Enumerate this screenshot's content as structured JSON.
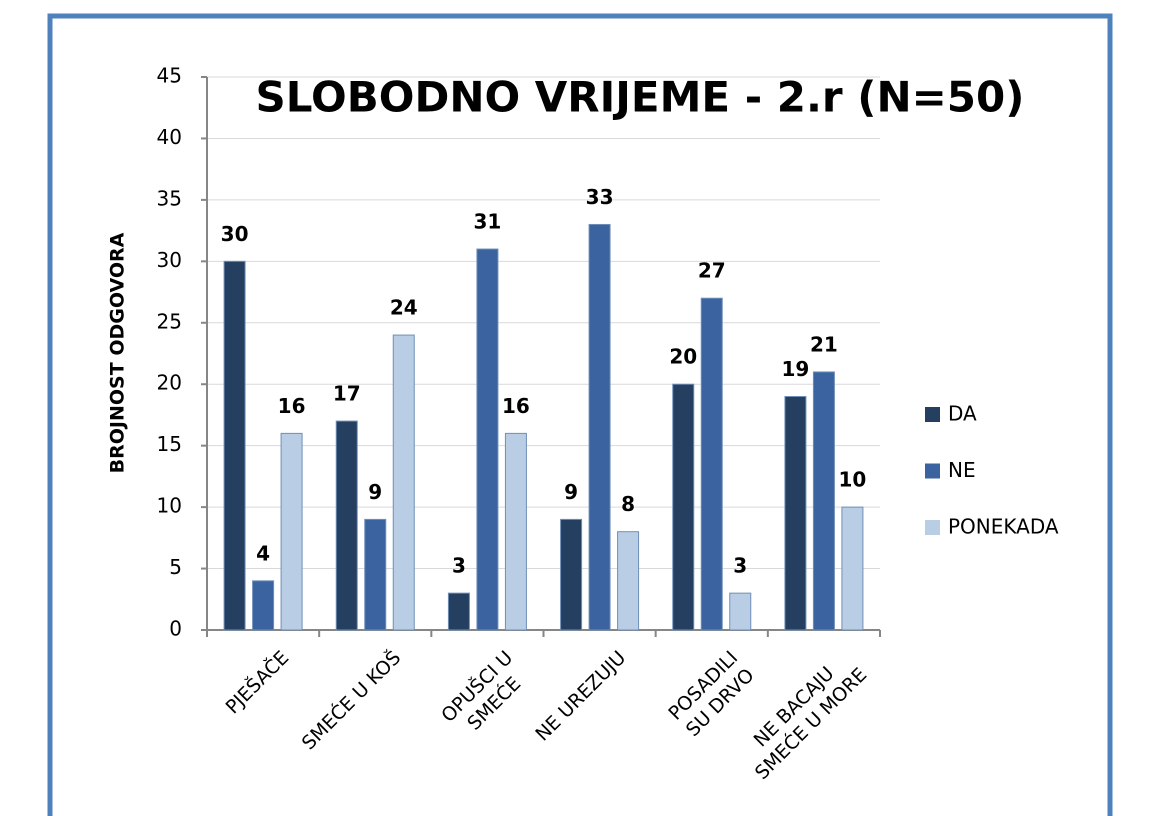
{
  "chart_data": {
    "type": "bar",
    "title": "SLOBODNO VRIJEME - 2.r (N=50)",
    "y_label": "BROJNOST ODGOVORA",
    "categories": [
      "PJEŠAČE",
      "SMEĆE U KOŠ",
      "OPUŠCI U\nSMEĆE",
      "NE UREZUJU",
      "POSADILI\nSU DRVO",
      "NE BACAJU\nSMEĆE U MORE"
    ],
    "series": [
      {
        "name": "DA",
        "color": "#243f60",
        "values": [
          30,
          17,
          3,
          9,
          20,
          19
        ]
      },
      {
        "name": "NE",
        "color": "#3a63a0",
        "values": [
          4,
          9,
          31,
          33,
          27,
          21
        ]
      },
      {
        "name": "PONEKADA",
        "color": "#b9cde5",
        "values": [
          16,
          24,
          16,
          8,
          3,
          10
        ]
      }
    ],
    "ylim": [
      0,
      45
    ],
    "yticks": [
      0,
      5,
      10,
      15,
      20,
      25,
      30,
      35,
      40,
      45
    ],
    "grid": true,
    "legend": "right"
  }
}
